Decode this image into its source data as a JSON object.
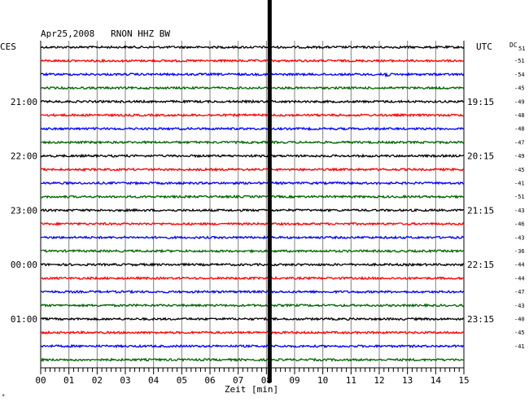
{
  "header": {
    "title": "Apr25,2008   RNON HHZ BW",
    "left_zone": "CES",
    "right_zone": "UTC",
    "dc_label": "DC",
    "dc_first": "51"
  },
  "footer": {
    "xlabel": "Zeit [min]",
    "corner_mark": "*"
  },
  "chart_data": {
    "type": "line",
    "title": "Apr25,2008   RNON HHZ BW",
    "xlabel": "Zeit [min]",
    "ylabel": "",
    "x_ticks": [
      "00",
      "01",
      "02",
      "03",
      "04",
      "05",
      "06",
      "07",
      "08",
      "09",
      "10",
      "11",
      "12",
      "13",
      "14",
      "15"
    ],
    "xlim": [
      0,
      15
    ],
    "grid": true,
    "series_colors": [
      "#000000",
      "#ff0000",
      "#0000ff",
      "#006400"
    ],
    "trace_count": 24,
    "left_time_labels": [
      {
        "trace": 4,
        "text": "21:00"
      },
      {
        "trace": 8,
        "text": "22:00"
      },
      {
        "trace": 12,
        "text": "23:00"
      },
      {
        "trace": 16,
        "text": "00:00"
      },
      {
        "trace": 20,
        "text": "01:00"
      }
    ],
    "right_time_labels": [
      {
        "trace": 4,
        "text": "19:15"
      },
      {
        "trace": 8,
        "text": "20:15"
      },
      {
        "trace": 12,
        "text": "21:15"
      },
      {
        "trace": 16,
        "text": "22:15"
      },
      {
        "trace": 20,
        "text": "23:15"
      }
    ],
    "dc_offsets": [
      "51",
      "-51",
      "-54",
      "-45",
      "-49",
      "-48",
      "-48",
      "-47",
      "-49",
      "-45",
      "-41",
      "-51",
      "-43",
      "-46",
      "-43",
      "-36",
      "-44",
      "-44",
      "-47",
      "-43",
      "-40",
      "-45",
      "-41"
    ],
    "event_marker_minute": 8.0
  }
}
